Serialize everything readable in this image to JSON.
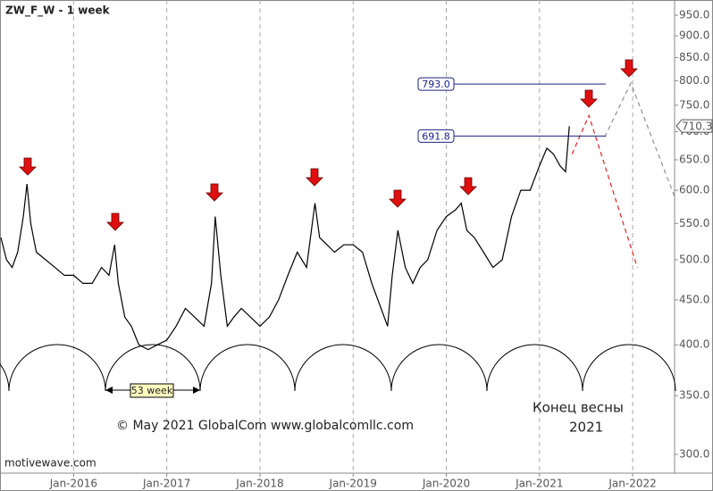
{
  "chart_data": {
    "type": "line",
    "title": "ZW_F_W - 1 week",
    "log_scale": true,
    "color": "#000000",
    "x": [
      2015.22,
      2015.28,
      2015.34,
      2015.4,
      2015.46,
      2015.5,
      2015.54,
      2015.6,
      2015.7,
      2015.8,
      2015.9,
      2016.0,
      2016.1,
      2016.2,
      2016.3,
      2016.38,
      2016.44,
      2016.48,
      2016.55,
      2016.62,
      2016.7,
      2016.8,
      2016.9,
      2017.0,
      2017.1,
      2017.2,
      2017.3,
      2017.4,
      2017.48,
      2017.52,
      2017.58,
      2017.65,
      2017.72,
      2017.8,
      2017.9,
      2018.0,
      2018.1,
      2018.2,
      2018.3,
      2018.4,
      2018.5,
      2018.59,
      2018.64,
      2018.72,
      2018.8,
      2018.9,
      2019.0,
      2019.1,
      2019.2,
      2019.3,
      2019.37,
      2019.42,
      2019.48,
      2019.56,
      2019.64,
      2019.72,
      2019.8,
      2019.9,
      2020.0,
      2020.1,
      2020.16,
      2020.22,
      2020.3,
      2020.4,
      2020.5,
      2020.6,
      2020.7,
      2020.8,
      2020.9,
      2021.0,
      2021.08,
      2021.15,
      2021.22,
      2021.28,
      2021.32
    ],
    "values": [
      530,
      500,
      490,
      510,
      560,
      610,
      550,
      510,
      500,
      490,
      480,
      480,
      470,
      470,
      490,
      480,
      520,
      470,
      430,
      420,
      400,
      395,
      400,
      405,
      420,
      440,
      430,
      420,
      470,
      560,
      480,
      420,
      430,
      440,
      430,
      420,
      430,
      450,
      480,
      510,
      490,
      580,
      530,
      520,
      510,
      520,
      520,
      510,
      470,
      440,
      420,
      480,
      540,
      490,
      470,
      490,
      500,
      540,
      560,
      570,
      580,
      540,
      530,
      510,
      490,
      500,
      560,
      600,
      600,
      640,
      670,
      660,
      640,
      630,
      710
    ],
    "last_value": 710.3,
    "hlines": {
      "values": [
        793,
        691.8
      ],
      "value_labels": [
        "793.0",
        "691.8"
      ]
    },
    "projections": [
      {
        "color": "#e02020",
        "x": [
          2021.35,
          2021.53,
          2022.05
        ],
        "values": [
          660,
          730,
          490
        ]
      },
      {
        "color": "#909090",
        "x": [
          2021.7,
          2021.98,
          2022.45
        ],
        "values": [
          690,
          795,
          590
        ]
      }
    ],
    "xlim": [
      2015.21,
      2022.45
    ],
    "xticks": [
      {
        "value": 2016,
        "label": "Jan-2016"
      },
      {
        "value": 2017,
        "label": "Jan-2017"
      },
      {
        "value": 2018,
        "label": "Jan-2018"
      },
      {
        "value": 2019,
        "label": "Jan-2019"
      },
      {
        "value": 2020,
        "label": "Jan-2020"
      },
      {
        "value": 2021,
        "label": "Jan-2021"
      },
      {
        "value": 2022,
        "label": "Jan-2022"
      }
    ],
    "ylim": [
      285.6,
      988.6
    ],
    "yticks": [
      {
        "value": 300,
        "label": "300.0"
      },
      {
        "value": 350,
        "label": "350.0"
      },
      {
        "value": 400,
        "label": "400.0"
      },
      {
        "value": 450,
        "label": "450.0"
      },
      {
        "value": 500,
        "label": "500.0"
      },
      {
        "value": 550,
        "label": "550.0"
      },
      {
        "value": 600,
        "label": "600.0"
      },
      {
        "value": 650,
        "label": "650.0"
      },
      {
        "value": 700,
        "label": "700.0"
      },
      {
        "value": 750,
        "label": "750.0"
      },
      {
        "value": 800,
        "label": "800.0"
      },
      {
        "value": 850,
        "label": "850.0"
      },
      {
        "value": 900,
        "label": "900.0"
      },
      {
        "value": 950,
        "label": "950.0"
      }
    ],
    "grid": true,
    "annotations": [
      "53 week",
      "© May 2021 GlobalCom www.globalcomllc.com",
      "Конец весны",
      "2021",
      "motivewave.com"
    ]
  }
}
